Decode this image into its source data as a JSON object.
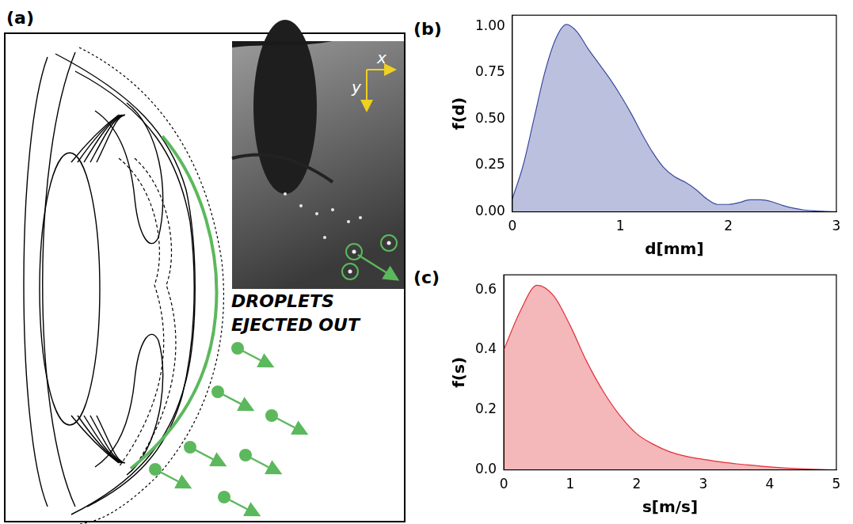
{
  "diagram": {
    "panel": "(a)",
    "caption": "DROPLETS EJECTED OUT",
    "axis_labels": [
      "x",
      "y"
    ]
  },
  "chart_data": [
    {
      "type": "area",
      "panel": "(b)",
      "xlabel": "d[mm]",
      "ylabel": "f(d)",
      "color": "#3b4ba0",
      "grid": false,
      "x": [
        0,
        0.1,
        0.2,
        0.3,
        0.4,
        0.5,
        0.6,
        0.7,
        0.8,
        0.9,
        1.0,
        1.1,
        1.2,
        1.3,
        1.4,
        1.5,
        1.6,
        1.7,
        1.8,
        1.9,
        2.0,
        2.1,
        2.2,
        2.3,
        2.4,
        2.5,
        2.6,
        2.7,
        2.8,
        2.9,
        3.0
      ],
      "values": [
        0.07,
        0.25,
        0.5,
        0.75,
        0.93,
        1.01,
        0.97,
        0.88,
        0.8,
        0.72,
        0.63,
        0.53,
        0.42,
        0.32,
        0.24,
        0.19,
        0.16,
        0.12,
        0.07,
        0.04,
        0.04,
        0.05,
        0.065,
        0.065,
        0.055,
        0.035,
        0.02,
        0.01,
        0.005,
        0.002,
        0
      ],
      "xlim": [
        0,
        3
      ],
      "xticks": [
        0,
        1,
        2,
        3
      ],
      "ylim": [
        0,
        1.06
      ],
      "yticks": [
        {
          "value": 0,
          "label": "0.00"
        },
        {
          "value": 0.25,
          "label": "0.25"
        },
        {
          "value": 0.5,
          "label": "0.50"
        },
        {
          "value": 0.75,
          "label": "0.75"
        },
        {
          "value": 1,
          "label": "1.00"
        }
      ]
    },
    {
      "type": "area",
      "panel": "(c)",
      "xlabel": "s[m/s]",
      "ylabel": "f(s)",
      "color": "#e0303a",
      "grid": false,
      "x": [
        0,
        0.25,
        0.5,
        0.75,
        1.0,
        1.25,
        1.5,
        1.75,
        2.0,
        2.25,
        2.5,
        2.75,
        3.0,
        3.25,
        3.5,
        3.75,
        4.0,
        4.25,
        4.5,
        4.75,
        5.0
      ],
      "values": [
        0.4,
        0.53,
        0.615,
        0.58,
        0.48,
        0.36,
        0.26,
        0.18,
        0.12,
        0.085,
        0.06,
        0.045,
        0.035,
        0.027,
        0.02,
        0.015,
        0.01,
        0.006,
        0.003,
        0.001,
        0
      ],
      "xlim": [
        0,
        5
      ],
      "xticks": [
        0,
        1,
        2,
        3,
        4,
        5
      ],
      "ylim": [
        0,
        0.65
      ],
      "yticks": [
        {
          "value": 0,
          "label": "0.0"
        },
        {
          "value": 0.2,
          "label": "0.2"
        },
        {
          "value": 0.4,
          "label": "0.4"
        },
        {
          "value": 0.6,
          "label": "0.6"
        }
      ]
    }
  ]
}
